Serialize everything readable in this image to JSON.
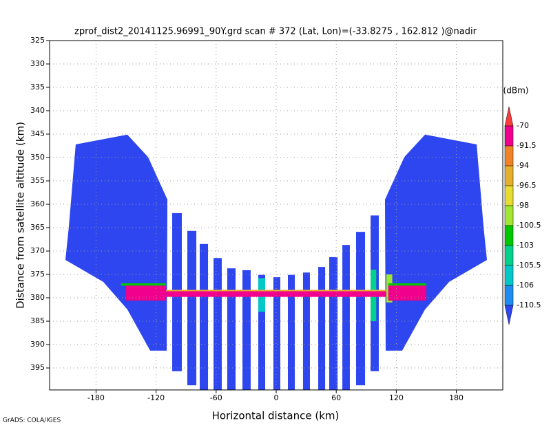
{
  "chart_data": {
    "type": "profile",
    "title": "zprof_dist2_20141125.96991_90Y.grd  scan # 372  (Lat, Lon)=(-33.8275 , 162.812 )@nadir",
    "x_label": "Horizontal distance (km)",
    "y_label": "Distance from satellite altitude (km)",
    "units": "(dBm)",
    "footer": "GrADS: COLA/IGES",
    "xlim": [
      -226.4,
      226.4
    ],
    "xticks": [
      -180,
      -120,
      -60,
      0,
      60,
      120,
      180
    ],
    "ylim": [
      399.7,
      325
    ],
    "yticks": [
      325,
      330,
      335,
      340,
      345,
      350,
      355,
      360,
      365,
      370,
      375,
      380,
      385,
      390,
      395
    ],
    "grid": true,
    "levels": [
      -110.5,
      -106,
      -105.5,
      -103,
      -100.5,
      -98,
      -96.5,
      -94,
      -91.5,
      -70
    ],
    "colors": [
      "#2d46f0",
      "#1e8cf0",
      "#00c8c8",
      "#00d28c",
      "#00c800",
      "#a0e632",
      "#e6dc32",
      "#e6af2d",
      "#f08228",
      "#f0008c",
      "#fa3c3c"
    ],
    "wings": [
      {
        "x": [
          -200.3,
          -148.7,
          -128.0,
          -108.7,
          -109.4,
          -125.9,
          -148.7,
          -172.8,
          -210.6,
          -207.2
        ],
        "y": [
          347.2,
          345.1,
          349.9,
          359.0,
          391.3,
          391.3,
          382.5,
          376.6,
          371.9,
          364.9
        ],
        "value": -115
      },
      {
        "x": [
          200.3,
          148.7,
          128.0,
          108.7,
          109.4,
          125.9,
          148.7,
          172.8,
          210.6,
          207.2
        ],
        "y": [
          347.2,
          345.1,
          349.9,
          359.0,
          391.3,
          391.3,
          382.5,
          376.6,
          371.9,
          364.9
        ],
        "value": -115
      }
    ],
    "columns": [
      {
        "x": [
          -103.9,
          -94.3
        ],
        "y": [
          361.9,
          395.7
        ],
        "value": -115
      },
      {
        "x": [
          -88.8,
          -79.8
        ],
        "y": [
          365.7,
          398.7
        ],
        "value": -115
      },
      {
        "x": [
          -76.4,
          -68.1
        ],
        "y": [
          368.5,
          399.7
        ],
        "value": -115
      },
      {
        "x": [
          -62.6,
          -54.4
        ],
        "y": [
          371.5,
          399.7
        ],
        "value": -115
      },
      {
        "x": [
          -48.9,
          -40.6
        ],
        "y": [
          373.7,
          399.7
        ],
        "value": -115
      },
      {
        "x": [
          -33.7,
          -25.5
        ],
        "y": [
          374.1,
          399.7
        ],
        "value": -115
      },
      {
        "x": [
          -17.9,
          -11.0
        ],
        "y": [
          375.1,
          399.7
        ],
        "value": -115
      },
      {
        "x": [
          -2.8,
          4.1
        ],
        "y": [
          375.6,
          399.7
        ],
        "value": -115
      },
      {
        "x": [
          11.7,
          18.6
        ],
        "y": [
          375.1,
          399.7
        ],
        "value": -115
      },
      {
        "x": [
          26.8,
          33.7
        ],
        "y": [
          374.6,
          399.7
        ],
        "value": -115
      },
      {
        "x": [
          42.0,
          48.9
        ],
        "y": [
          373.4,
          399.7
        ],
        "value": -115
      },
      {
        "x": [
          53.0,
          61.3
        ],
        "y": [
          371.3,
          399.7
        ],
        "value": -115
      },
      {
        "x": [
          66.1,
          73.6
        ],
        "y": [
          368.7,
          399.7
        ],
        "value": -115
      },
      {
        "x": [
          79.8,
          88.8
        ],
        "y": [
          365.9,
          398.7
        ],
        "value": -115
      },
      {
        "x": [
          94.3,
          102.5
        ],
        "y": [
          362.4,
          395.7
        ],
        "value": -115
      }
    ],
    "band": [
      {
        "x": [
          -17.9,
          -11.0
        ],
        "y": [
          375.8,
          383.0
        ],
        "value": -105.8
      },
      {
        "x": [
          94.3,
          100.0
        ],
        "y": [
          374.0,
          385.0
        ],
        "value": -104
      },
      {
        "x": [
          110.0,
          116.0
        ],
        "y": [
          375.0,
          381.0
        ],
        "value": -99
      },
      {
        "x": [
          -155.0,
          -110.0
        ],
        "y": [
          376.9,
          377.4
        ],
        "value": -101
      },
      {
        "x": [
          112.0,
          150.0
        ],
        "y": [
          376.9,
          377.4
        ],
        "value": -101
      },
      {
        "x": [
          -110.0,
          110.0
        ],
        "y": [
          378.3,
          378.6
        ],
        "value": -95
      },
      {
        "x": [
          -110.0,
          110.0
        ],
        "y": [
          378.6,
          379.8
        ],
        "value": -88
      },
      {
        "x": [
          -150.0,
          -110.0
        ],
        "y": [
          377.4,
          380.6
        ],
        "value": -85
      },
      {
        "x": [
          112.0,
          150.0
        ],
        "y": [
          377.4,
          380.6
        ],
        "value": -85
      }
    ]
  }
}
